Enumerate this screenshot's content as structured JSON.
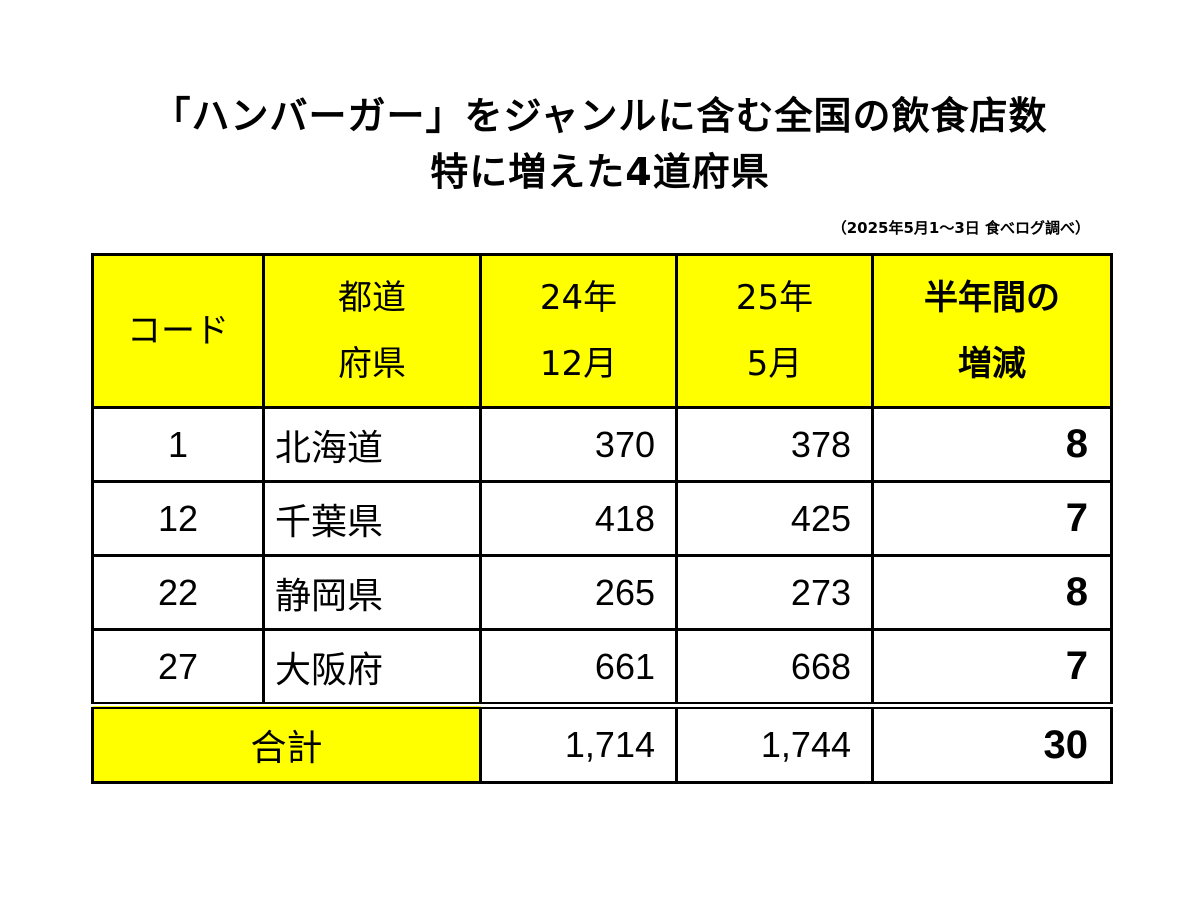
{
  "title": {
    "line1": "「ハンバーガー」をジャンルに含む全国の飲食店数",
    "line2": "特に増えた4道府県"
  },
  "source": "（2025年5月1～3日 食べログ調べ）",
  "table": {
    "headers": {
      "code": "コード",
      "pref_l1": "都道",
      "pref_l2": "府県",
      "dec_l1": "24年",
      "dec_l2": "12月",
      "may_l1": "25年",
      "may_l2": "5月",
      "diff_l1": "半年間の",
      "diff_l2": "増減"
    },
    "rows": [
      {
        "code": "1",
        "pref": "北海道",
        "dec": "370",
        "may": "378",
        "diff": "8"
      },
      {
        "code": "12",
        "pref": "千葉県",
        "dec": "418",
        "may": "425",
        "diff": "7"
      },
      {
        "code": "22",
        "pref": "静岡県",
        "dec": "265",
        "may": "273",
        "diff": "8"
      },
      {
        "code": "27",
        "pref": "大阪府",
        "dec": "661",
        "may": "668",
        "diff": "7"
      }
    ],
    "total": {
      "label": "合計",
      "dec": "1,714",
      "may": "1,744",
      "diff": "30"
    }
  },
  "colors": {
    "header_bg": "#ffff00",
    "border": "#000000"
  }
}
